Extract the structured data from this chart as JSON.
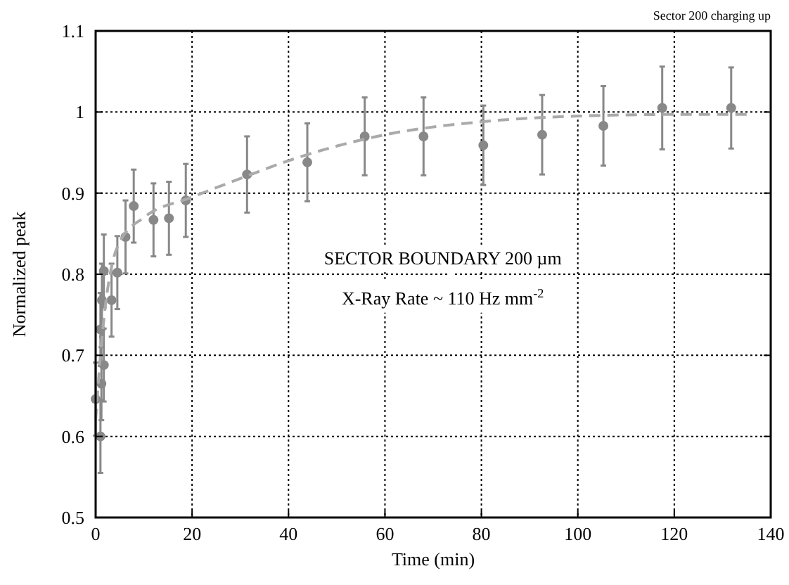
{
  "chart_data": {
    "type": "scatter",
    "xlabel": "Time (min)",
    "ylabel": "Normalized peak",
    "xlim": [
      0,
      140
    ],
    "xticks": [
      0,
      20,
      40,
      60,
      80,
      100,
      120,
      140
    ],
    "ylim": [
      0.5,
      1.1
    ],
    "yticks": [
      0.5,
      0.6,
      0.7,
      0.8,
      0.9,
      1,
      1.1
    ],
    "grid": true,
    "marker": "circle",
    "annotations": [
      "Sector 200 charging up",
      "SECTOR BOUNDARY 200 µm",
      "X-Ray Rate ~ 110 Hz mm$^{-2}$"
    ],
    "series": [
      {
        "color": "#888888",
        "x": [
          0,
          1,
          1.2,
          1.7,
          1,
          1.3,
          3.3,
          1.7,
          4.5,
          6.2,
          7.9,
          12,
          15.2,
          18.7,
          31.4,
          43.9,
          55.8,
          68,
          80.4,
          92.6,
          105.3,
          117.5,
          131.8
        ],
        "values": [
          0.646,
          0.6,
          0.665,
          0.688,
          0.732,
          0.768,
          0.768,
          0.804,
          0.802,
          0.846,
          0.884,
          0.867,
          0.869,
          0.891,
          0.923,
          0.938,
          0.97,
          0.97,
          0.959,
          0.972,
          0.983,
          1.005,
          1.005
        ],
        "errors": [
          0.045,
          0.045,
          0.045,
          0.045,
          0.045,
          0.045,
          0.045,
          0.045,
          0.045,
          0.045,
          0.045,
          0.045,
          0.045,
          0.045,
          0.047,
          0.048,
          0.048,
          0.048,
          0.049,
          0.049,
          0.049,
          0.051,
          0.05
        ]
      },
      {
        "type": "line",
        "line_style": "dashed",
        "marker": "none",
        "color": "#aaaaaa",
        "x": [
          0,
          1,
          2,
          3,
          5,
          10,
          20,
          30,
          40,
          50,
          60,
          80,
          100,
          120,
          136
        ],
        "values": [
          0.62,
          0.7,
          0.76,
          0.8,
          0.84,
          0.87,
          0.895,
          0.918,
          0.94,
          0.958,
          0.972,
          0.988,
          0.995,
          0.997,
          0.997
        ]
      }
    ]
  }
}
